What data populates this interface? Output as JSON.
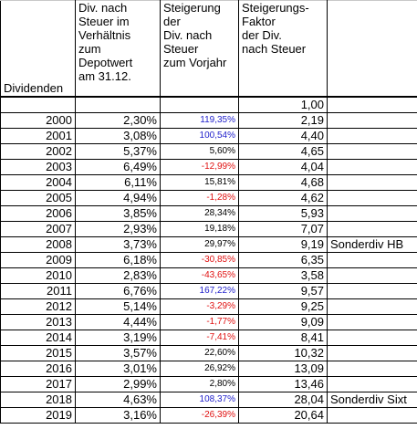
{
  "header": {
    "col_a": "Dividenden",
    "col_b": [
      "Div. nach",
      "Steuer im",
      "Verhältnis",
      "zum",
      "Depotwert",
      "am 31.12."
    ],
    "col_c": [
      "Steigerung",
      "der",
      "Div. nach",
      "Steuer",
      "zum Vorjahr"
    ],
    "col_d": [
      "Steigerungs-",
      "Faktor",
      "der Div.",
      "nach Steuer"
    ]
  },
  "table": {
    "rows": [
      {
        "factor": "1,00"
      },
      {
        "year": "2000",
        "yield": "2,30%",
        "change": "119,35%",
        "change_color": "#2222cc",
        "factor": "2,19"
      },
      {
        "year": "2001",
        "yield": "3,08%",
        "change": "100,54%",
        "change_color": "#2222cc",
        "factor": "4,40"
      },
      {
        "year": "2002",
        "yield": "5,37%",
        "change": "5,60%",
        "change_color": "#000000",
        "factor": "4,65"
      },
      {
        "year": "2003",
        "yield": "6,49%",
        "change": "-12,99%",
        "change_color": "#e01010",
        "factor": "4,04"
      },
      {
        "year": "2004",
        "yield": "6,11%",
        "change": "15,81%",
        "change_color": "#000000",
        "factor": "4,68"
      },
      {
        "year": "2005",
        "yield": "4,94%",
        "change": "-1,28%",
        "change_color": "#e01010",
        "factor": "4,62"
      },
      {
        "year": "2006",
        "yield": "3,85%",
        "change": "28,34%",
        "change_color": "#000000",
        "factor": "5,93"
      },
      {
        "year": "2007",
        "yield": "2,93%",
        "change": "19,18%",
        "change_color": "#000000",
        "factor": "7,07"
      },
      {
        "year": "2008",
        "yield": "3,73%",
        "change": "29,97%",
        "change_color": "#000000",
        "factor": "9,19",
        "note": "Sonderdiv HB"
      },
      {
        "year": "2009",
        "yield": "6,18%",
        "change": "-30,85%",
        "change_color": "#e01010",
        "factor": "6,35"
      },
      {
        "year": "2010",
        "yield": "2,83%",
        "change": "-43,65%",
        "change_color": "#e01010",
        "factor": "3,58"
      },
      {
        "year": "2011",
        "yield": "6,76%",
        "change": "167,22%",
        "change_color": "#2222cc",
        "factor": "9,57"
      },
      {
        "year": "2012",
        "yield": "5,14%",
        "change": "-3,29%",
        "change_color": "#e01010",
        "factor": "9,25"
      },
      {
        "year": "2013",
        "yield": "4,44%",
        "change": "-1,77%",
        "change_color": "#e01010",
        "factor": "9,09"
      },
      {
        "year": "2014",
        "yield": "3,19%",
        "change": "-7,41%",
        "change_color": "#e01010",
        "factor": "8,41"
      },
      {
        "year": "2015",
        "yield": "3,57%",
        "change": "22,60%",
        "change_color": "#000000",
        "factor": "10,32"
      },
      {
        "year": "2016",
        "yield": "3,01%",
        "change": "26,92%",
        "change_color": "#000000",
        "factor": "13,09"
      },
      {
        "year": "2017",
        "yield": "2,99%",
        "change": "2,80%",
        "change_color": "#000000",
        "factor": "13,46"
      },
      {
        "year": "2018",
        "yield": "4,63%",
        "change": "108,37%",
        "change_color": "#2222cc",
        "factor": "28,04",
        "note": "Sonderdiv Sixt"
      },
      {
        "year": "2019",
        "yield": "3,16%",
        "change": "-26,39%",
        "change_color": "#e01010",
        "factor": "20,64"
      }
    ]
  }
}
